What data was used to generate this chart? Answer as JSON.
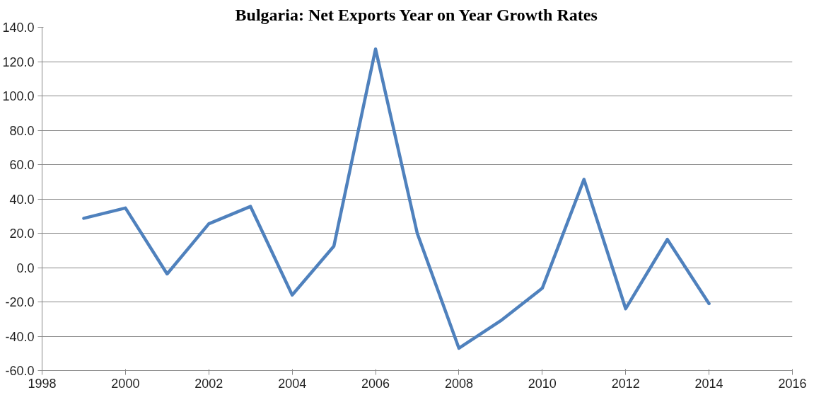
{
  "chart_data": {
    "type": "line",
    "title": "Bulgaria: Net Exports Year on Year Growth Rates",
    "x": [
      1999,
      2000,
      2001,
      2002,
      2003,
      2004,
      2005,
      2006,
      2007,
      2008,
      2009,
      2010,
      2011,
      2012,
      2013,
      2014
    ],
    "series": [
      {
        "color": "#4f81bd",
        "values": [
          28.7,
          34.7,
          -3.7,
          25.5,
          35.6,
          -16,
          12.5,
          127.3,
          20,
          -47,
          -31,
          -12,
          51.4,
          -24,
          16.4,
          -21
        ]
      }
    ],
    "xlim": [
      1998,
      2016
    ],
    "xticks": [
      1998,
      2000,
      2002,
      2004,
      2006,
      2008,
      2010,
      2012,
      2014,
      2016
    ],
    "ylim": [
      -60,
      140
    ],
    "yticks": [
      {
        "value": -60,
        "label": "-60.0"
      },
      {
        "value": -40,
        "label": "-40.0"
      },
      {
        "value": -20,
        "label": "-20.0"
      },
      {
        "value": 0,
        "label": "0.0"
      },
      {
        "value": 20,
        "label": "20.0"
      },
      {
        "value": 40,
        "label": "40.0"
      },
      {
        "value": 60,
        "label": "60.0"
      },
      {
        "value": 80,
        "label": "80.0"
      },
      {
        "value": 100,
        "label": "100.0"
      },
      {
        "value": 120,
        "label": "120.0"
      },
      {
        "value": 140,
        "label": "140.0"
      }
    ],
    "grid": "y",
    "marker": "none",
    "line_style": "solid"
  }
}
